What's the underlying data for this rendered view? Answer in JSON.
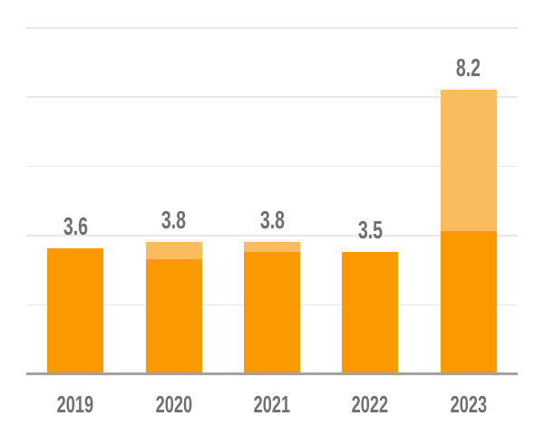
{
  "chart_data": {
    "type": "bar",
    "stacked": true,
    "title": "",
    "xlabel": "",
    "ylabel": "",
    "categories": [
      "2019",
      "2020",
      "2021",
      "2022",
      "2023"
    ],
    "series": [
      {
        "name": "primary-segment",
        "color": "#FB9900",
        "values": [
          3.6,
          3.3,
          3.5,
          3.5,
          4.1
        ]
      },
      {
        "name": "secondary-segment",
        "color": "#FBBC5E",
        "values": [
          0.0,
          0.5,
          0.3,
          0.0,
          4.1
        ]
      }
    ],
    "totals": [
      3.6,
      3.8,
      3.8,
      3.5,
      8.2
    ],
    "total_labels": [
      "3.6",
      "3.8",
      "3.8",
      "3.5",
      "8.2"
    ],
    "ylim": [
      0,
      10
    ],
    "gridline_step": 2,
    "grid": true,
    "y_axis_tick_labels_visible": false,
    "legend": "none",
    "colors": {
      "grid": "#E9E9E9",
      "axis": "#A2A2A2",
      "label": "#6F6F6F"
    }
  }
}
